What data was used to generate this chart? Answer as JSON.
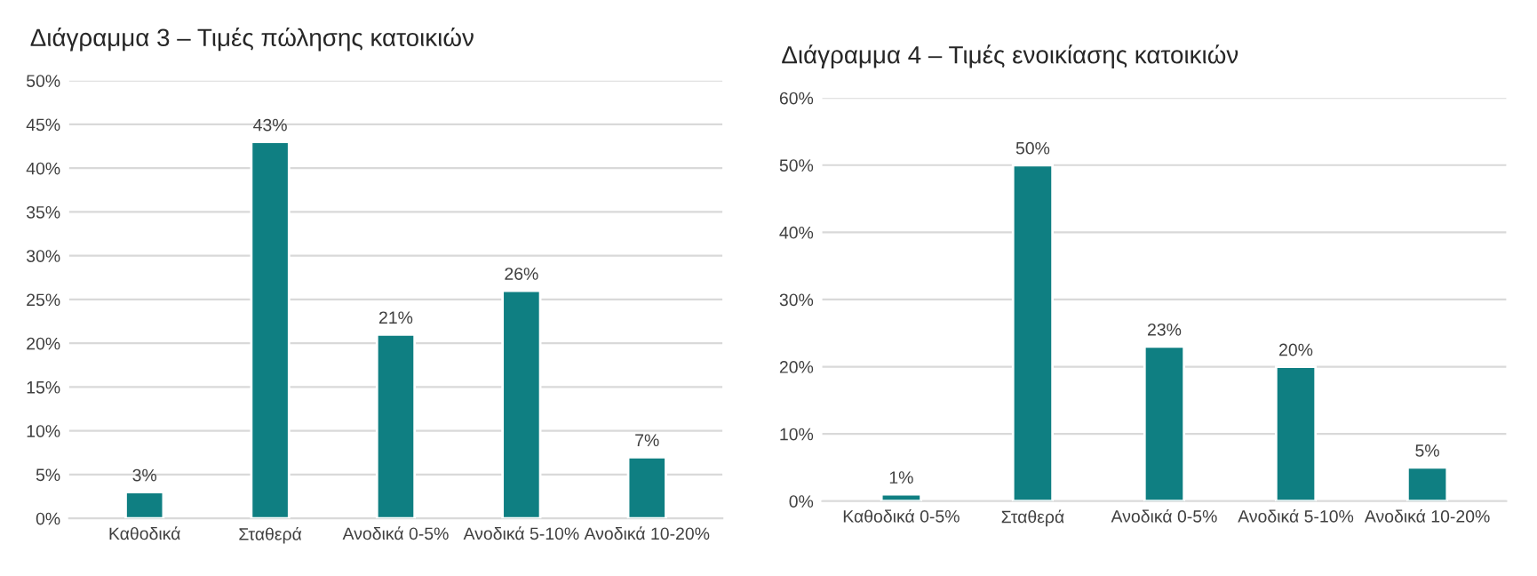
{
  "chart_data": [
    {
      "type": "bar",
      "title": "Διάγραμμα 3 – Τιμές πώλησης κατοικιών",
      "categories": [
        "Καθοδικά",
        "Σταθερά",
        "Ανοδικά 0-5%",
        "Ανοδικά 5-10%",
        "Ανοδικά 10-20%"
      ],
      "values": [
        3,
        43,
        21,
        26,
        7
      ],
      "value_labels": [
        "3%",
        "43%",
        "21%",
        "26%",
        "7%"
      ],
      "color": "#0f7f82",
      "ylim": [
        0,
        50
      ],
      "yticks": [
        {
          "value": 0,
          "label": "0%"
        },
        {
          "value": 5,
          "label": "5%"
        },
        {
          "value": 10,
          "label": "10%"
        },
        {
          "value": 15,
          "label": "15%"
        },
        {
          "value": 20,
          "label": "20%"
        },
        {
          "value": 25,
          "label": "25%"
        },
        {
          "value": 30,
          "label": "30%"
        },
        {
          "value": 35,
          "label": "35%"
        },
        {
          "value": 40,
          "label": "40%"
        },
        {
          "value": 45,
          "label": "45%"
        },
        {
          "value": 50,
          "label": "50%"
        }
      ],
      "grid": "y",
      "legend": false
    },
    {
      "type": "bar",
      "title": "Διάγραμμα 4 – Τιμές ενοικίασης κατοικιών",
      "categories": [
        "Καθοδικά 0-5%",
        "Σταθερά",
        "Ανοδικά 0-5%",
        "Ανοδικά 5-10%",
        "Ανοδικά 10-20%"
      ],
      "values": [
        1,
        50,
        23,
        20,
        5
      ],
      "value_labels": [
        "1%",
        "50%",
        "23%",
        "20%",
        "5%"
      ],
      "color": "#0f7f82",
      "ylim": [
        0,
        60
      ],
      "yticks": [
        {
          "value": 0,
          "label": "0%"
        },
        {
          "value": 10,
          "label": "10%"
        },
        {
          "value": 20,
          "label": "20%"
        },
        {
          "value": 30,
          "label": "30%"
        },
        {
          "value": 40,
          "label": "40%"
        },
        {
          "value": 50,
          "label": "50%"
        },
        {
          "value": 60,
          "label": "60%"
        }
      ],
      "grid": "y",
      "legend": false
    }
  ]
}
